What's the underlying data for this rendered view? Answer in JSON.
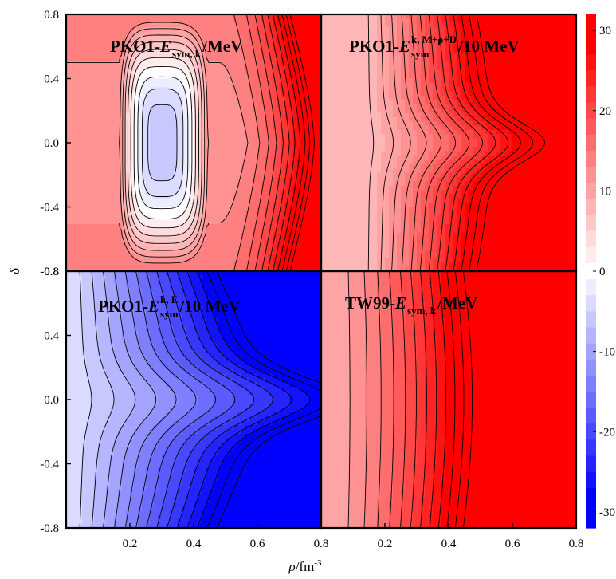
{
  "chart_data": {
    "type": "heatmap",
    "layout": "2x2 contour panels with shared colorbar",
    "x_axis": {
      "label_symbol": "ρ",
      "label_unit": "/fm",
      "label_exp": "-3",
      "range": [
        0.0,
        0.8
      ],
      "ticks": [
        "0.2",
        "0.4",
        "0.6",
        "0.8"
      ]
    },
    "y_axis": {
      "label": "δ",
      "range": [
        -0.8,
        0.8
      ],
      "ticks": [
        "0.8",
        "0.4",
        "0.0",
        "-0.4",
        "-0.8"
      ]
    },
    "colorbar": {
      "range": [
        -32,
        32
      ],
      "ticks": [
        "30",
        "20",
        "10",
        "0",
        "-10",
        "-20",
        "-30"
      ],
      "colors": {
        "low": "#0000ff",
        "mid": "#ffffff",
        "high": "#ff0000"
      }
    },
    "panels": [
      {
        "id": "tl",
        "title_main": "PKO1-",
        "title_var": "E",
        "title_sub": "sym, k",
        "title_sup": "",
        "title_tail": "/MeV",
        "model": "well",
        "value_range": [
          -8,
          32
        ],
        "note": "closed minimum near ρ=0.30, δ=0.0 (~ -7); rises to >30 at high ρ"
      },
      {
        "id": "tr",
        "title_main": "PKO1-",
        "title_var": "E",
        "title_sub": "sym",
        "title_sup": "k, M+ρ+D",
        "title_tail": "/10 MeV",
        "model": "increase",
        "value_range": [
          5,
          32
        ],
        "note": "increasing with ρ, contours bow outward at δ=0"
      },
      {
        "id": "bl",
        "title_main": "PKO1-",
        "title_var": "E",
        "title_sub": "sym",
        "title_sup": "k, E",
        "title_tail": "/10 MeV",
        "model": "decrease",
        "value_range": [
          -32,
          -2
        ],
        "note": "decreasing with ρ, strongest at large |δ|"
      },
      {
        "id": "br",
        "title_main": "TW99-",
        "title_var": "E",
        "title_sub": "sym, k",
        "title_sup": "",
        "title_tail": "/MeV",
        "model": "steep",
        "value_range": [
          10,
          32
        ],
        "note": "rapid rise, saturates above ρ≈0.5"
      }
    ]
  }
}
